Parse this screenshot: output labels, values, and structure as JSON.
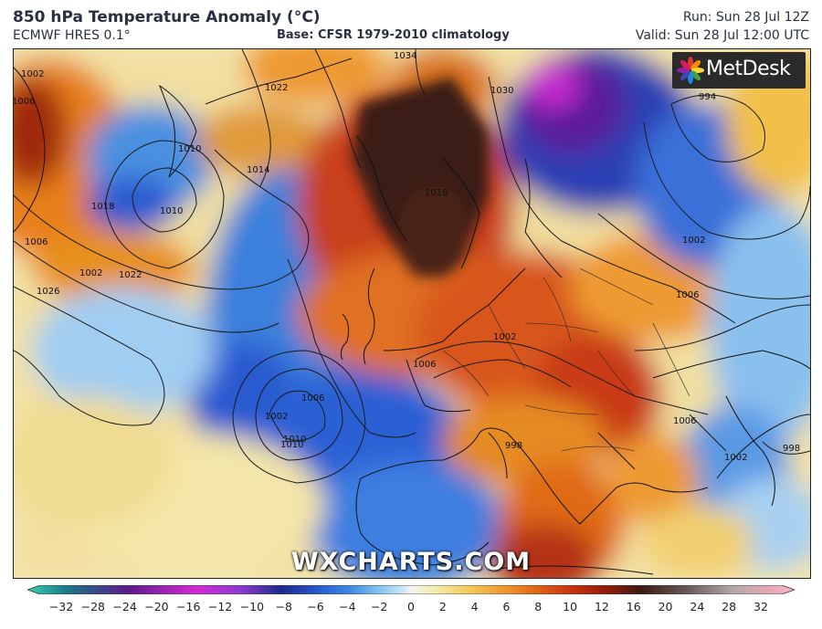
{
  "header": {
    "title": "850 hPa Temperature Anomaly (°C)",
    "model": "ECMWF HRES 0.1°",
    "base": "Base: CFSR 1979-2010 climatology",
    "run": "Run: Sun 28 Jul 12Z",
    "valid": "Valid: Sun 28 Jul 12:00 UTC"
  },
  "branding": {
    "logo_text": "MetDesk",
    "logo_icon": "metdesk-flower-icon",
    "watermark": "WXCHARTS.COM"
  },
  "isobar_labels": [
    "1002",
    "1006",
    "1010",
    "1014",
    "1018",
    "1022",
    "1026",
    "1010",
    "1006",
    "1002",
    "1010",
    "1006",
    "1002",
    "1010",
    "1022",
    "1034",
    "1030",
    "1018",
    "994",
    "1002",
    "1006",
    "1002",
    "1006",
    "1006",
    "998",
    "1002",
    "998"
  ],
  "colorbar": {
    "ticks": [
      "−32",
      "−28",
      "−24",
      "−20",
      "−16",
      "−12",
      "−10",
      "−8",
      "−6",
      "−4",
      "−2",
      "0",
      "2",
      "4",
      "6",
      "8",
      "10",
      "12",
      "16",
      "20",
      "24",
      "28",
      "32"
    ],
    "colors": {
      "min_cold": "#3ad0b0",
      "deep_cold": "#1a7a8a",
      "purple": "#5a1a8a",
      "magenta": "#d52ad5",
      "violet": "#8a3ad0",
      "navy": "#1c2a8a",
      "blue": "#2a5ad0",
      "mid_blue": "#3c8ae0",
      "light_blue": "#8ac4f0",
      "pale_blue": "#cfe6f8",
      "white": "#f4f4f0",
      "pale_yellow": "#f4ecb0",
      "yellow": "#f2d060",
      "orange": "#ee9a30",
      "dark_orange": "#e06a18",
      "red": "#c83010",
      "dark_red": "#8a1a0a",
      "brown": "#3a1a14",
      "grey_brown": "#6a5a5a",
      "light_grey": "#b4a8a8",
      "pink": "#e8a8b8",
      "max_pink": "#f4b8c8"
    }
  }
}
